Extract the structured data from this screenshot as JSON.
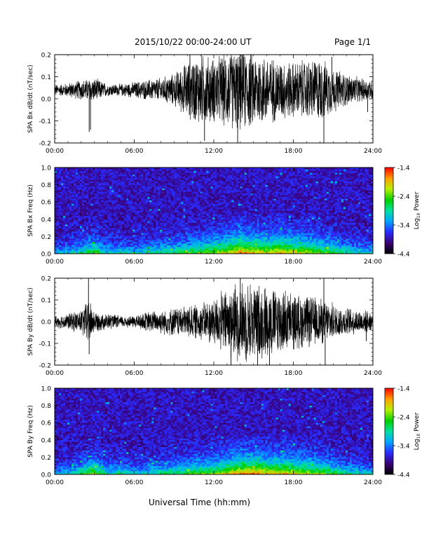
{
  "header": {
    "date_range": "2015/10/22  00:00-24:00 UT",
    "page": "Page 1/1"
  },
  "footer": {
    "xlabel": "Universal Time (hh:mm)"
  },
  "colorbar_title_base": "Log",
  "colorbar_title_sub": "10",
  "colorbar_title_tail": " Power",
  "chart_data": [
    {
      "type": "line",
      "ylabel": "SPA Bx dB/dt (nT/sec)",
      "xlim": [
        0,
        24
      ],
      "ylim": [
        -0.2,
        0.2
      ],
      "x_ticks": [
        "00:00",
        "06:00",
        "12:00",
        "18:00",
        "24:00"
      ],
      "y_ticks": [
        "-0.2",
        "-0.1",
        "0.0",
        "0.1",
        "0.2"
      ],
      "baseline": 0.04,
      "envelope_profile": [
        [
          0,
          0.025
        ],
        [
          1,
          0.035
        ],
        [
          2,
          0.05
        ],
        [
          3,
          0.06
        ],
        [
          4,
          0.03
        ],
        [
          5,
          0.03
        ],
        [
          6,
          0.04
        ],
        [
          7,
          0.05
        ],
        [
          8,
          0.06
        ],
        [
          9,
          0.08
        ],
        [
          10,
          0.14
        ],
        [
          11,
          0.18
        ],
        [
          12,
          0.16
        ],
        [
          13,
          0.19
        ],
        [
          14,
          0.2
        ],
        [
          15,
          0.19
        ],
        [
          16,
          0.17
        ],
        [
          17,
          0.15
        ],
        [
          18,
          0.14
        ],
        [
          19,
          0.15
        ],
        [
          20,
          0.16
        ],
        [
          21,
          0.11
        ],
        [
          22,
          0.08
        ],
        [
          23,
          0.06
        ],
        [
          24,
          0.05
        ]
      ],
      "spikes": [
        [
          2.6,
          -0.15
        ],
        [
          2.7,
          -0.14
        ],
        [
          10.2,
          0.2
        ],
        [
          11.3,
          -0.19
        ],
        [
          13.8,
          -0.2
        ],
        [
          14.2,
          0.2
        ],
        [
          20.3,
          -0.2
        ],
        [
          20.9,
          0.19
        ],
        [
          23.6,
          -0.06
        ]
      ]
    },
    {
      "type": "heatmap",
      "ylabel": "SPA Bx Freq (Hz)",
      "xlim": [
        0,
        24
      ],
      "ylim": [
        0,
        1.0
      ],
      "x_ticks": [
        "00:00",
        "06:00",
        "12:00",
        "18:00",
        "24:00"
      ],
      "y_ticks": [
        "0.0",
        "0.2",
        "0.4",
        "0.6",
        "0.8",
        "1.0"
      ],
      "colorbar": {
        "label": "Log10 Power",
        "range": [
          -4.4,
          -1.4
        ],
        "ticks": [
          "-1.4",
          "-2.4",
          "-3.4",
          "-4.4"
        ]
      },
      "activity_profile": [
        [
          0,
          0.25
        ],
        [
          1,
          0.3
        ],
        [
          2,
          0.4
        ],
        [
          3,
          0.55
        ],
        [
          4,
          0.3
        ],
        [
          5,
          0.35
        ],
        [
          6,
          0.3
        ],
        [
          7,
          0.35
        ],
        [
          8,
          0.4
        ],
        [
          9,
          0.45
        ],
        [
          10,
          0.5
        ],
        [
          11,
          0.55
        ],
        [
          12,
          0.6
        ],
        [
          13,
          0.7
        ],
        [
          14,
          0.8
        ],
        [
          15,
          0.75
        ],
        [
          16,
          0.7
        ],
        [
          17,
          0.75
        ],
        [
          18,
          0.7
        ],
        [
          19,
          0.65
        ],
        [
          20,
          0.6
        ],
        [
          21,
          0.5
        ],
        [
          22,
          0.4
        ],
        [
          23,
          0.35
        ],
        [
          24,
          0.3
        ]
      ]
    },
    {
      "type": "line",
      "ylabel": "SPA By dB/dt (nT/sec)",
      "xlim": [
        0,
        24
      ],
      "ylim": [
        -0.2,
        0.2
      ],
      "x_ticks": [
        "00:00",
        "06:00",
        "12:00",
        "18:00",
        "24:00"
      ],
      "y_ticks": [
        "-0.2",
        "-0.1",
        "0.0",
        "0.1",
        "0.2"
      ],
      "baseline": 0.0,
      "envelope_profile": [
        [
          0,
          0.03
        ],
        [
          1,
          0.04
        ],
        [
          2,
          0.06
        ],
        [
          2.6,
          0.12
        ],
        [
          3,
          0.05
        ],
        [
          4,
          0.04
        ],
        [
          5,
          0.03
        ],
        [
          6,
          0.03
        ],
        [
          7,
          0.05
        ],
        [
          8,
          0.06
        ],
        [
          9,
          0.07
        ],
        [
          10,
          0.08
        ],
        [
          11,
          0.09
        ],
        [
          12,
          0.12
        ],
        [
          13,
          0.17
        ],
        [
          14,
          0.2
        ],
        [
          15,
          0.2
        ],
        [
          16,
          0.18
        ],
        [
          17,
          0.17
        ],
        [
          18,
          0.14
        ],
        [
          19,
          0.13
        ],
        [
          20,
          0.12
        ],
        [
          21,
          0.09
        ],
        [
          22,
          0.07
        ],
        [
          23,
          0.06
        ],
        [
          24,
          0.05
        ]
      ],
      "spikes": [
        [
          2.6,
          -0.15
        ],
        [
          2.55,
          0.2
        ],
        [
          13.3,
          -0.2
        ],
        [
          14.0,
          0.2
        ],
        [
          15.3,
          -0.2
        ],
        [
          16.2,
          -0.2
        ],
        [
          20.3,
          0.2
        ],
        [
          20.4,
          -0.2
        ],
        [
          23.5,
          -0.09
        ]
      ]
    },
    {
      "type": "heatmap",
      "ylabel": "SPA By Freq (Hz)",
      "xlim": [
        0,
        24
      ],
      "ylim": [
        0,
        1.0
      ],
      "x_ticks": [
        "00:00",
        "06:00",
        "12:00",
        "18:00",
        "24:00"
      ],
      "y_ticks": [
        "0.0",
        "0.2",
        "0.4",
        "0.6",
        "0.8",
        "1.0"
      ],
      "colorbar": {
        "label": "Log10 Power",
        "range": [
          -4.4,
          -1.4
        ],
        "ticks": [
          "-1.4",
          "-2.4",
          "-3.4",
          "-4.4"
        ]
      },
      "activity_profile": [
        [
          0,
          0.25
        ],
        [
          1,
          0.3
        ],
        [
          2,
          0.45
        ],
        [
          3,
          0.6
        ],
        [
          4,
          0.35
        ],
        [
          5,
          0.4
        ],
        [
          6,
          0.3
        ],
        [
          7,
          0.35
        ],
        [
          8,
          0.4
        ],
        [
          9,
          0.45
        ],
        [
          10,
          0.5
        ],
        [
          11,
          0.55
        ],
        [
          12,
          0.6
        ],
        [
          13,
          0.7
        ],
        [
          14,
          0.8
        ],
        [
          15,
          0.8
        ],
        [
          16,
          0.75
        ],
        [
          17,
          0.75
        ],
        [
          18,
          0.7
        ],
        [
          19,
          0.65
        ],
        [
          20,
          0.6
        ],
        [
          21,
          0.5
        ],
        [
          22,
          0.4
        ],
        [
          23,
          0.35
        ],
        [
          24,
          0.3
        ]
      ]
    }
  ]
}
